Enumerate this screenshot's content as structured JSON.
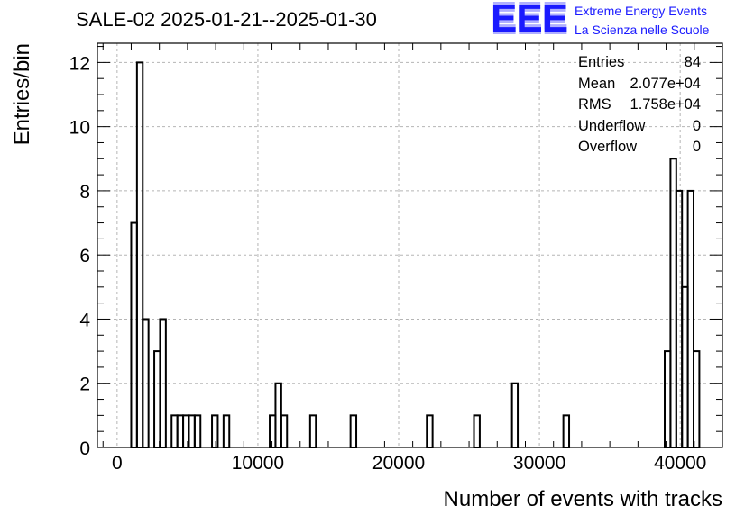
{
  "title": "SALE-02 2025-01-21--2025-01-30",
  "logo": {
    "mark": "EEE",
    "line1": "Extreme Energy Events",
    "line2": "La Scienza nelle Scuole"
  },
  "stats": [
    {
      "label": "Entries",
      "value": "84"
    },
    {
      "label": "Mean",
      "value": "2.077e+04"
    },
    {
      "label": "RMS",
      "value": "1.758e+04"
    },
    {
      "label": "Underflow",
      "value": "0"
    },
    {
      "label": "Overflow",
      "value": "0"
    }
  ],
  "chart_data": {
    "type": "bar",
    "style": "step-histogram",
    "title": "SALE-02 2025-01-21--2025-01-30",
    "xlabel": "Number of events with tracks",
    "ylabel": "Entries/bin",
    "xlim": [
      -1400,
      43000
    ],
    "ylim": [
      0,
      12.6
    ],
    "xticks": [
      0,
      10000,
      20000,
      30000,
      40000
    ],
    "xtick_labels": [
      "0",
      "10000",
      "20000",
      "30000",
      "40000"
    ],
    "yticks": [
      0,
      2,
      4,
      6,
      8,
      10,
      12
    ],
    "ytick_labels": [
      "0",
      "2",
      "4",
      "6",
      "8",
      "10",
      "12"
    ],
    "grid": true,
    "bin_width": 410,
    "bins": [
      {
        "x0": 1000,
        "value": 7
      },
      {
        "x0": 1410,
        "value": 12
      },
      {
        "x0": 1820,
        "value": 4
      },
      {
        "x0": 2230,
        "value": 0
      },
      {
        "x0": 2640,
        "value": 3
      },
      {
        "x0": 3050,
        "value": 4
      },
      {
        "x0": 3460,
        "value": 0
      },
      {
        "x0": 3870,
        "value": 1
      },
      {
        "x0": 4280,
        "value": 1
      },
      {
        "x0": 4690,
        "value": 1
      },
      {
        "x0": 5100,
        "value": 1
      },
      {
        "x0": 5510,
        "value": 1
      },
      {
        "x0": 5920,
        "value": 0
      },
      {
        "x0": 6330,
        "value": 0
      },
      {
        "x0": 6740,
        "value": 1
      },
      {
        "x0": 7150,
        "value": 0
      },
      {
        "x0": 7560,
        "value": 1
      },
      {
        "x0": 10840,
        "value": 1
      },
      {
        "x0": 11250,
        "value": 2
      },
      {
        "x0": 11660,
        "value": 1
      },
      {
        "x0": 13710,
        "value": 1
      },
      {
        "x0": 16580,
        "value": 1
      },
      {
        "x0": 22000,
        "value": 1
      },
      {
        "x0": 25350,
        "value": 1
      },
      {
        "x0": 28050,
        "value": 2
      },
      {
        "x0": 31700,
        "value": 1
      },
      {
        "x0": 38900,
        "value": 3
      },
      {
        "x0": 39310,
        "value": 9
      },
      {
        "x0": 39720,
        "value": 8
      },
      {
        "x0": 40130,
        "value": 5
      },
      {
        "x0": 40540,
        "value": 8
      },
      {
        "x0": 40950,
        "value": 3
      }
    ]
  }
}
